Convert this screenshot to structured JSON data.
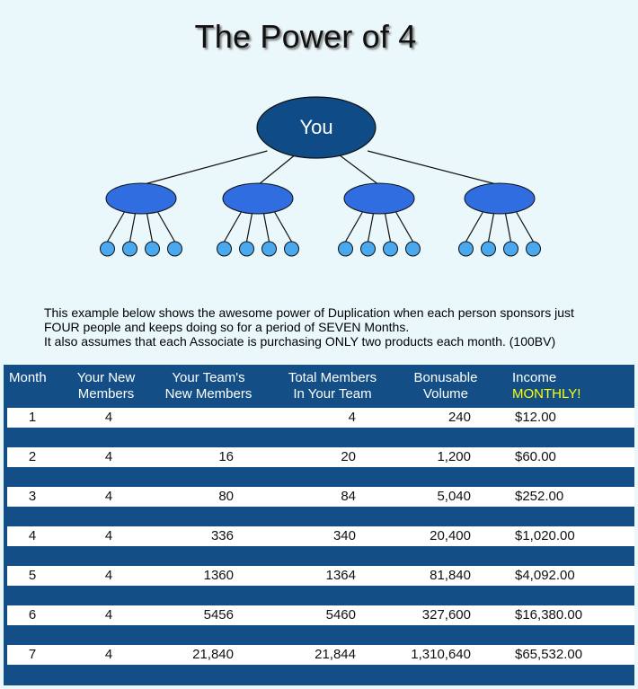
{
  "title": "The Power of 4",
  "tree": {
    "root_label": "You",
    "branches": 4,
    "leaves_per_branch": 4
  },
  "description": {
    "line1": "This example below shows the awesome power of Duplication when each person sponsors just",
    "line2": "FOUR people and keeps doing so for a period of SEVEN Months.",
    "line3": "It also assumes that each Associate is purchasing ONLY two products each month. (100BV)"
  },
  "table": {
    "headers": {
      "month": "Month",
      "new_members_1": "Your New",
      "new_members_2": "Members",
      "team_1": "Your Team's",
      "team_2": "New Members",
      "total_1": "Total Members",
      "total_2": "In Your Team",
      "volume_1": "Bonusable",
      "volume_2": "Volume",
      "income_1": "Income",
      "income_2": "MONTHLY!"
    },
    "rows": [
      {
        "month": "1",
        "new": "4",
        "team": "",
        "total": "4",
        "volume": "240",
        "income": "$12.00"
      },
      {
        "month": "2",
        "new": "4",
        "team": "16",
        "total": "20",
        "volume": "1,200",
        "income": "$60.00"
      },
      {
        "month": "3",
        "new": "4",
        "team": "80",
        "total": "84",
        "volume": "5,040",
        "income": "$252.00"
      },
      {
        "month": "4",
        "new": "4",
        "team": "336",
        "total": "340",
        "volume": "20,400",
        "income": "$1,020.00"
      },
      {
        "month": "5",
        "new": "4",
        "team": "1360",
        "total": "1364",
        "volume": "81,840",
        "income": "$4,092.00"
      },
      {
        "month": "6",
        "new": "4",
        "team": "5456",
        "total": "5460",
        "volume": "327,600",
        "income": "$16,380.00"
      },
      {
        "month": "7",
        "new": "4",
        "team": "21,840",
        "total": "21,844",
        "volume": "1,310,640",
        "income": "$65,532.00"
      }
    ]
  },
  "colors": {
    "root_fill": "#0f4b86",
    "branch_fill": "#2f6de0",
    "leaf_fill": "#4aa8ee",
    "table_bg": "#134f86",
    "highlight": "#ffff00"
  }
}
